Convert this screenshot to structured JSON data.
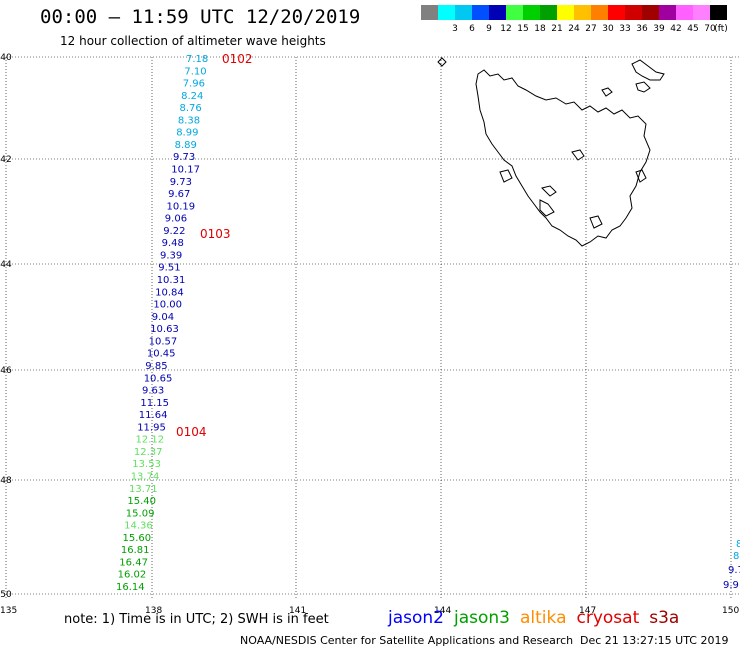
{
  "header": {
    "title": "00:00 – 11:59 UTC 12/20/2019",
    "subtitle": "12 hour collection of altimeter wave heights"
  },
  "legend": {
    "unit": "(ft)",
    "bins": [
      {
        "label": "",
        "color": "#808080"
      },
      {
        "label": "3",
        "color": "#00ffff"
      },
      {
        "label": "6",
        "color": "#00c8f0"
      },
      {
        "label": "9",
        "color": "#0050ff"
      },
      {
        "label": "12",
        "color": "#0000b4"
      },
      {
        "label": "15",
        "color": "#40ff40"
      },
      {
        "label": "18",
        "color": "#00d000"
      },
      {
        "label": "21",
        "color": "#00a000"
      },
      {
        "label": "24",
        "color": "#ffff00"
      },
      {
        "label": "27",
        "color": "#ffc000"
      },
      {
        "label": "30",
        "color": "#ff8000"
      },
      {
        "label": "33",
        "color": "#ff0000"
      },
      {
        "label": "36",
        "color": "#d00000"
      },
      {
        "label": "39",
        "color": "#a00000"
      },
      {
        "label": "42",
        "color": "#a000a0"
      },
      {
        "label": "45",
        "color": "#ff60ff"
      },
      {
        "label": "70",
        "color": "#ff80ff"
      },
      {
        "label": "",
        "color": "#000000"
      }
    ]
  },
  "axes": {
    "lat_labels": [
      "-40",
      "-42",
      "-44",
      "-46",
      "-48",
      "-50"
    ],
    "lon_labels": [
      "135",
      "138",
      "141",
      "144",
      "147",
      "150"
    ]
  },
  "track": {
    "points": [
      {
        "v": "7.18",
        "c": "#00a8e0"
      },
      {
        "v": "7.10",
        "c": "#00a8e0"
      },
      {
        "v": "7.96",
        "c": "#00a8e0"
      },
      {
        "v": "8.24",
        "c": "#00a8e0"
      },
      {
        "v": "8.76",
        "c": "#00a8e0"
      },
      {
        "v": "8.38",
        "c": "#00a8e0"
      },
      {
        "v": "8.99",
        "c": "#00a8e0"
      },
      {
        "v": "8.89",
        "c": "#00a8e0"
      },
      {
        "v": "9.73",
        "c": "#0000b4"
      },
      {
        "v": "10.17",
        "c": "#0000b4"
      },
      {
        "v": "9.73",
        "c": "#0000b4"
      },
      {
        "v": "9.67",
        "c": "#0000b4"
      },
      {
        "v": "10.19",
        "c": "#0000b4"
      },
      {
        "v": "9.06",
        "c": "#0000b4"
      },
      {
        "v": "9.22",
        "c": "#0000b4"
      },
      {
        "v": "9.48",
        "c": "#0000b4"
      },
      {
        "v": "9.39",
        "c": "#0000b4"
      },
      {
        "v": "9.51",
        "c": "#0000b4"
      },
      {
        "v": "10.31",
        "c": "#0000b4"
      },
      {
        "v": "10.84",
        "c": "#0000b4"
      },
      {
        "v": "10.00",
        "c": "#0000b4"
      },
      {
        "v": "9.04",
        "c": "#0000b4"
      },
      {
        "v": "10.63",
        "c": "#0000b4"
      },
      {
        "v": "10.57",
        "c": "#0000b4"
      },
      {
        "v": "10.45",
        "c": "#0000b4"
      },
      {
        "v": "9.85",
        "c": "#0000b4"
      },
      {
        "v": "10.65",
        "c": "#0000b4"
      },
      {
        "v": "9.63",
        "c": "#0000b4"
      },
      {
        "v": "11.15",
        "c": "#0000b4"
      },
      {
        "v": "11.64",
        "c": "#0000b4"
      },
      {
        "v": "11.95",
        "c": "#0000b4"
      },
      {
        "v": "12.12",
        "c": "#60e060"
      },
      {
        "v": "12.37",
        "c": "#60e060"
      },
      {
        "v": "13.53",
        "c": "#60e060"
      },
      {
        "v": "13.74",
        "c": "#60e060"
      },
      {
        "v": "13.71",
        "c": "#60e060"
      },
      {
        "v": "15.40",
        "c": "#00a000"
      },
      {
        "v": "15.09",
        "c": "#00a000"
      },
      {
        "v": "14.36",
        "c": "#60e060"
      },
      {
        "v": "15.60",
        "c": "#00a000"
      },
      {
        "v": "16.81",
        "c": "#00a000"
      },
      {
        "v": "16.47",
        "c": "#00a000"
      },
      {
        "v": "16.02",
        "c": "#00a000"
      },
      {
        "v": "16.14",
        "c": "#00a000"
      }
    ],
    "time_labels": [
      "0102",
      "0103",
      "0104"
    ],
    "edge_values": [
      {
        "v": "8",
        "c": "#00a8e0"
      },
      {
        "v": "8",
        "c": "#00a8e0"
      },
      {
        "v": "9.7",
        "c": "#0000b4"
      },
      {
        "v": "9.9",
        "c": "#0000b4"
      }
    ]
  },
  "footer": {
    "note": "note:  1) Time is in UTC; 2) SWH is in feet",
    "satellites": [
      {
        "name": "jason2",
        "color": "#0000ff"
      },
      {
        "name": "jason3",
        "color": "#00a000"
      },
      {
        "name": "altika",
        "color": "#ff8c00"
      },
      {
        "name": "cryosat",
        "color": "#e00000"
      },
      {
        "name": "s3a",
        "color": "#a00000"
      }
    ],
    "credit": "NOAA/NESDIS Center for Satellite Applications and Research",
    "timestamp": "Dec 21 13:27:15 UTC 2019"
  }
}
